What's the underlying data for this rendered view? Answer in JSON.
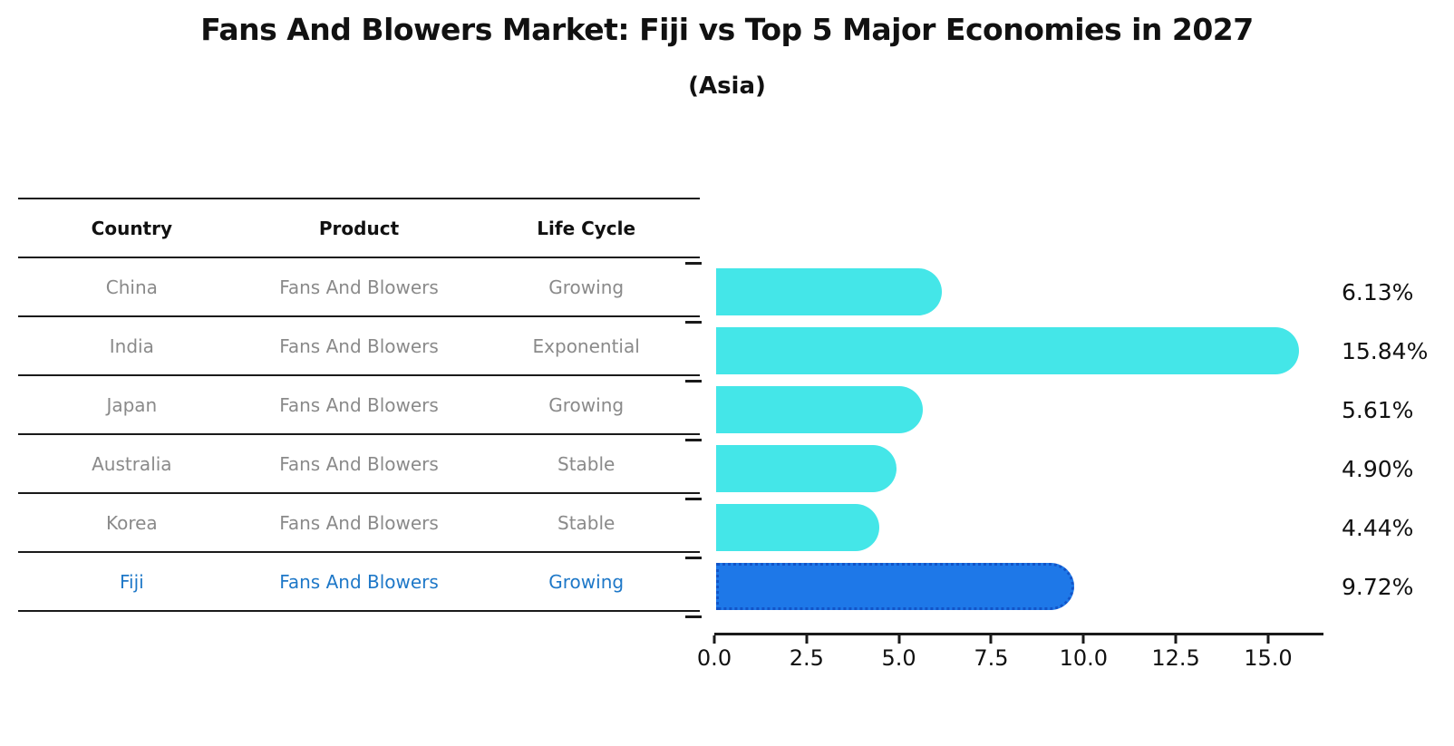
{
  "title": "Fans And Blowers Market: Fiji vs Top 5 Major Economies in 2027",
  "subtitle": "(Asia)",
  "table": {
    "headers": [
      "Country",
      "Product",
      "Life Cycle"
    ],
    "rows": [
      {
        "country": "China",
        "product": "Fans And Blowers",
        "life_cycle": "Growing",
        "highlight": false
      },
      {
        "country": "India",
        "product": "Fans And Blowers",
        "life_cycle": "Exponential",
        "highlight": false
      },
      {
        "country": "Japan",
        "product": "Fans And Blowers",
        "life_cycle": "Growing",
        "highlight": false
      },
      {
        "country": "Australia",
        "product": "Fans And Blowers",
        "life_cycle": "Stable",
        "highlight": false
      },
      {
        "country": "Korea",
        "product": "Fans And Blowers",
        "life_cycle": "Stable",
        "highlight": false
      },
      {
        "country": "Fiji",
        "product": "Fans And Blowers",
        "life_cycle": "Growing",
        "highlight": true
      }
    ]
  },
  "chart_data": {
    "type": "bar",
    "orientation": "horizontal",
    "title": "Fans And Blowers Market: Fiji vs Top 5 Major Economies in 2027",
    "subtitle": "(Asia)",
    "categories": [
      "China",
      "India",
      "Japan",
      "Australia",
      "Korea",
      "Fiji"
    ],
    "values": [
      6.13,
      15.84,
      5.61,
      4.9,
      4.44,
      9.72
    ],
    "value_labels": [
      "6.13%",
      "15.84%",
      "5.61%",
      "4.90%",
      "4.44%",
      "9.72%"
    ],
    "highlight_index": 5,
    "xlim": [
      0,
      16.5
    ],
    "x_ticks": [
      0.0,
      2.5,
      5.0,
      7.5,
      10.0,
      12.5,
      15.0
    ],
    "x_tick_labels": [
      "0.0",
      "2.5",
      "5.0",
      "7.5",
      "10.0",
      "12.5",
      "15.0"
    ],
    "grid": false,
    "legend": false,
    "bar_color": "#44E6E8",
    "highlight_bar_color": "#1E78E8",
    "highlight_border_color": "#1254C8",
    "highlight_text_color": "#1E78C8"
  }
}
